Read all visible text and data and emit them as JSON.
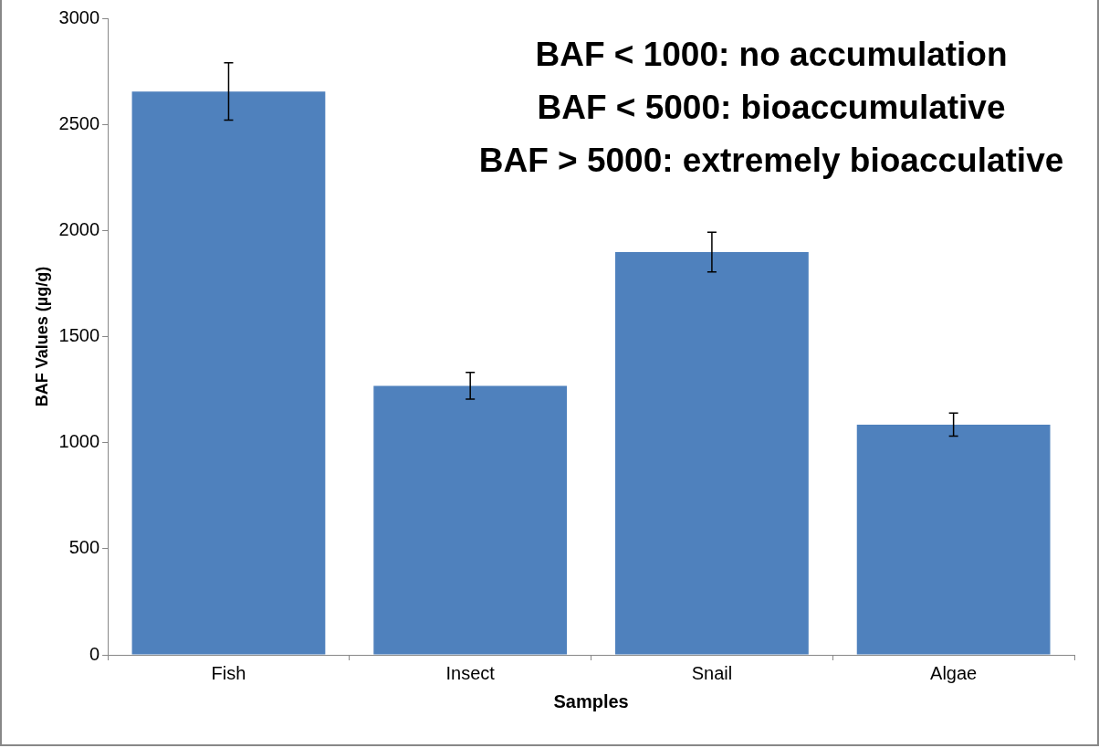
{
  "chart_data": {
    "type": "bar",
    "xlabel": "Samples",
    "ylabel": "BAF Values (µg/g)",
    "categories": [
      "Fish",
      "Insect",
      "Snail",
      "Algae"
    ],
    "values": [
      2655,
      1268,
      1898,
      1085
    ],
    "errors": [
      135,
      63,
      94,
      54
    ],
    "color": "#4f81bd",
    "ylim": [
      0,
      3000
    ],
    "yticks": [
      0,
      500,
      1000,
      1500,
      2000,
      2500,
      3000
    ],
    "grid": false,
    "legend": false,
    "annotations": [
      "BAF < 1000: no accumulation",
      "BAF < 5000: bioaccumulative",
      "BAF > 5000: extremely bioacculative"
    ]
  }
}
